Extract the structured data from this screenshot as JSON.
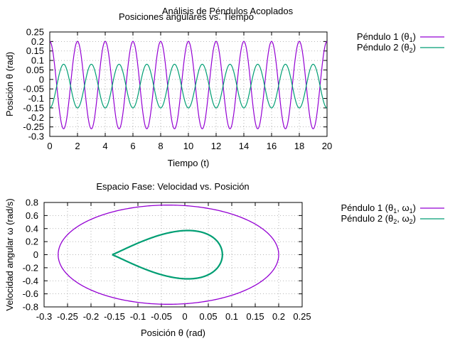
{
  "figure_title": "Análisis de Péndulos Acoplados",
  "chart_data": [
    {
      "type": "line",
      "title": "Posiciones angulares vs. Tiempo",
      "xlabel": "Tiempo (t)",
      "ylabel": "Posición θ (rad)",
      "xlim": [
        0,
        20
      ],
      "ylim": [
        -0.3,
        0.25
      ],
      "xticks": [
        0,
        2,
        4,
        6,
        8,
        10,
        12,
        14,
        16,
        18,
        20
      ],
      "yticks": [
        -0.3,
        -0.25,
        -0.2,
        -0.15,
        -0.1,
        -0.05,
        0,
        0.05,
        0.1,
        0.15,
        0.2,
        0.25
      ],
      "grid": true,
      "legend_position": "outside-right",
      "series": [
        {
          "name_base": "Péndulo 1 (θ",
          "name_sub": "1",
          "name_tail": ")",
          "color": "#9400d3",
          "center": -0.03,
          "amplitude": 0.23,
          "period": 2.0,
          "first_peak_t": 0.0
        },
        {
          "name_base": "Péndulo 2 (θ",
          "name_sub": "2",
          "name_tail": ")",
          "color": "#009e73",
          "center": -0.035,
          "amplitude": 0.115,
          "period": 2.0,
          "first_peak_t": 1.0
        }
      ]
    },
    {
      "type": "line",
      "title": "Espacio Fase: Velocidad vs. Posición",
      "xlabel": "Posición θ (rad)",
      "ylabel": "Velocidad angular ω (rad/s)",
      "xlim": [
        -0.3,
        0.25
      ],
      "ylim": [
        -0.8,
        0.8
      ],
      "xticks": [
        -0.3,
        -0.25,
        -0.2,
        -0.15,
        -0.1,
        -0.05,
        0,
        0.05,
        0.1,
        0.15,
        0.2,
        0.25
      ],
      "yticks": [
        -0.8,
        -0.6,
        -0.4,
        -0.2,
        0,
        0.2,
        0.4,
        0.6,
        0.8
      ],
      "grid": true,
      "legend_position": "outside-right",
      "series": [
        {
          "name_base": "Péndulo 1 (θ",
          "name_sub": "1",
          "name_mid": ", ω",
          "name_sub2": "1",
          "name_tail": ")",
          "color": "#9400d3",
          "theta_range": [
            -0.27,
            0.2
          ],
          "omega_peak": 0.76,
          "teardrop": false
        },
        {
          "name_base": "Péndulo 2 (θ",
          "name_sub": "2",
          "name_mid": ", ω",
          "name_sub2": "2",
          "name_tail": ")",
          "color": "#009e73",
          "theta_range": [
            -0.155,
            0.08
          ],
          "omega_peak": 0.4,
          "teardrop": true
        }
      ]
    }
  ]
}
